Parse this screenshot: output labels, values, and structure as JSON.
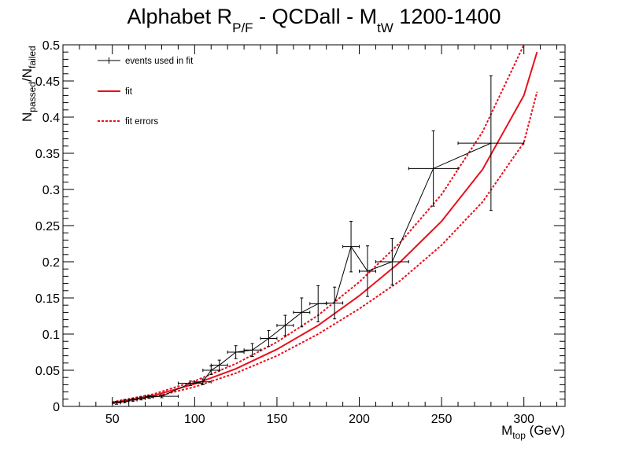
{
  "chart_data": {
    "type": "line",
    "title": {
      "main": "Alphabet R",
      "main_sub": "P/F",
      "mid": " - QCDall - M",
      "mid_sub": "tW",
      "tail": " 1200-1400"
    },
    "xlabel": {
      "main": "M",
      "sub": "top",
      "tail": " (GeV)"
    },
    "ylabel": {
      "a": "N",
      "a_sub": "passed",
      "b": "/N",
      "b_sub": "failed"
    },
    "xlim": [
      20,
      325
    ],
    "ylim": [
      0,
      0.5
    ],
    "x_ticks": [
      50,
      100,
      150,
      200,
      250,
      300
    ],
    "y_ticks": [
      0,
      0.05,
      0.1,
      0.15,
      0.2,
      0.25,
      0.3,
      0.35,
      0.4,
      0.45,
      0.5
    ],
    "x_tick_labels": [
      "50",
      "100",
      "150",
      "200",
      "250",
      "300"
    ],
    "y_tick_labels": [
      "0",
      "0.05",
      "0.1",
      "0.15",
      "0.2",
      "0.25",
      "0.3",
      "0.35",
      "0.4",
      "0.45",
      "0.5"
    ],
    "legend": {
      "position": "top-left",
      "entries": [
        "events used in fit",
        "fit",
        "fit errors"
      ]
    },
    "colors": {
      "data": "#000000",
      "fit": "#e8101c",
      "fit_errors": "#e8101c"
    },
    "series": [
      {
        "name": "events used in fit",
        "points": [
          {
            "x": 52.5,
            "y": 0.005,
            "xerr": 2.5,
            "yerr": 0.002
          },
          {
            "x": 57.5,
            "y": 0.007,
            "xerr": 2.5,
            "yerr": 0.002
          },
          {
            "x": 62.5,
            "y": 0.009,
            "xerr": 2.5,
            "yerr": 0.002
          },
          {
            "x": 67.5,
            "y": 0.011,
            "xerr": 2.5,
            "yerr": 0.002
          },
          {
            "x": 72.5,
            "y": 0.013,
            "xerr": 2.5,
            "yerr": 0.002
          },
          {
            "x": 80,
            "y": 0.014,
            "xerr": 10,
            "yerr": 0.002
          },
          {
            "x": 97.5,
            "y": 0.032,
            "xerr": 7.5,
            "yerr": 0.003
          },
          {
            "x": 105,
            "y": 0.034,
            "xerr": 5,
            "yerr": 0.004
          },
          {
            "x": 110,
            "y": 0.05,
            "xerr": 5,
            "yerr": 0.006
          },
          {
            "x": 115,
            "y": 0.057,
            "xerr": 5,
            "yerr": 0.007
          },
          {
            "x": 125,
            "y": 0.075,
            "xerr": 5,
            "yerr": 0.009
          },
          {
            "x": 135,
            "y": 0.078,
            "xerr": 5,
            "yerr": 0.009
          },
          {
            "x": 145,
            "y": 0.094,
            "xerr": 5,
            "yerr": 0.011
          },
          {
            "x": 155,
            "y": 0.112,
            "xerr": 5,
            "yerr": 0.014
          },
          {
            "x": 165,
            "y": 0.13,
            "xerr": 5,
            "yerr": 0.02
          },
          {
            "x": 175,
            "y": 0.142,
            "xerr": 5,
            "yerr": 0.025
          },
          {
            "x": 185,
            "y": 0.143,
            "xerr": 5,
            "yerr": 0.022
          },
          {
            "x": 195,
            "y": 0.221,
            "xerr": 5,
            "yerr": 0.035
          },
          {
            "x": 205,
            "y": 0.187,
            "xerr": 5,
            "yerr": 0.035
          },
          {
            "x": 220,
            "y": 0.2,
            "xerr": 10,
            "yerr": 0.032
          },
          {
            "x": 245,
            "y": 0.329,
            "xerr": 15,
            "yerr": 0.052
          },
          {
            "x": 280,
            "y": 0.364,
            "xerr": 20,
            "yerr": 0.093
          }
        ]
      },
      {
        "name": "fit",
        "x": [
          50,
          75,
          100,
          125,
          150,
          175,
          200,
          225,
          250,
          275,
          300,
          308
        ],
        "y": [
          0.005,
          0.015,
          0.031,
          0.052,
          0.079,
          0.112,
          0.153,
          0.2,
          0.256,
          0.328,
          0.43,
          0.49
        ]
      },
      {
        "name": "fit errors (upper)",
        "x": [
          50,
          75,
          100,
          125,
          150,
          175,
          200,
          225,
          250,
          275,
          300
        ],
        "y": [
          0.006,
          0.017,
          0.035,
          0.059,
          0.089,
          0.126,
          0.172,
          0.227,
          0.293,
          0.38,
          0.5
        ]
      },
      {
        "name": "fit errors (lower)",
        "x": [
          50,
          75,
          100,
          125,
          150,
          175,
          200,
          225,
          250,
          275,
          300,
          308
        ],
        "y": [
          0.004,
          0.013,
          0.027,
          0.046,
          0.07,
          0.1,
          0.135,
          0.174,
          0.223,
          0.283,
          0.365,
          0.435
        ]
      }
    ]
  }
}
